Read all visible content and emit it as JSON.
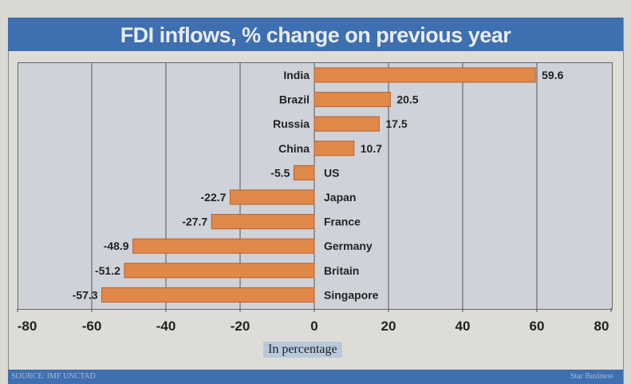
{
  "chart_data": {
    "type": "bar",
    "orientation": "horizontal",
    "title": "FDI inflows, % change on previous year",
    "xlabel": "In percentage",
    "ylabel": "",
    "categories": [
      "India",
      "Brazil",
      "Russia",
      "China",
      "US",
      "Japan",
      "France",
      "Germany",
      "Britain",
      "Singapore"
    ],
    "values": [
      59.6,
      20.5,
      17.5,
      10.7,
      -5.5,
      -22.7,
      -27.7,
      -48.9,
      -51.2,
      -57.3
    ],
    "value_labels": [
      "59.6",
      "20.5",
      "17.5",
      "10.7",
      "-5.5",
      "-22.7",
      "-27.7",
      "-48.9",
      "-51.2",
      "-57.3"
    ],
    "xlim": [
      -80,
      80
    ],
    "xticks": [
      -80,
      -60,
      -40,
      -20,
      0,
      20,
      40,
      60,
      80
    ],
    "xtick_labels": [
      "-80",
      "-60",
      "-40",
      "-20",
      "0",
      "20",
      "40",
      "60",
      "80"
    ],
    "grid": true,
    "bar_color": "#e0874a",
    "source": "SOURCE: IMF UNCTAD",
    "credit": "Star Business"
  }
}
